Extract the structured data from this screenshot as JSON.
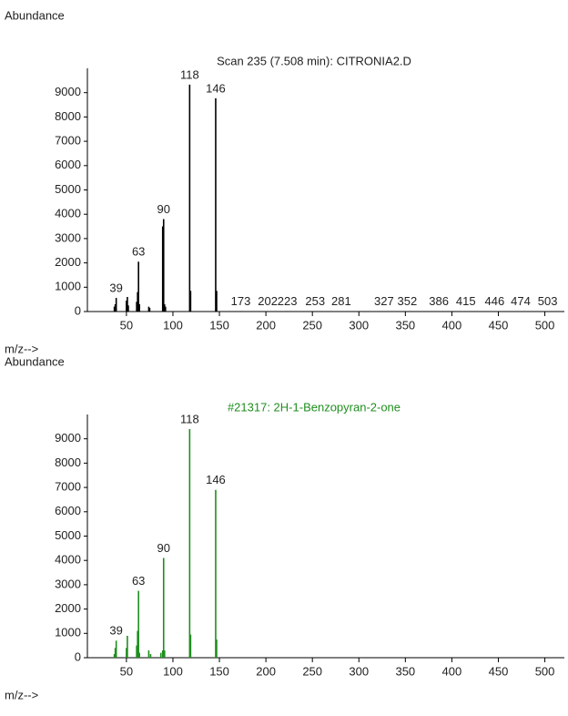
{
  "chart_data": [
    {
      "type": "bar",
      "title": "Scan 235 (7.508 min): CITRONIA2.D",
      "y_label": "Abundance",
      "x_label": "m/z-->",
      "color": "#000000",
      "x": [
        37,
        38,
        39,
        50,
        51,
        52,
        61,
        62,
        63,
        64,
        74,
        75,
        89,
        90,
        91,
        92,
        118,
        119,
        146,
        147,
        173,
        202,
        223,
        253,
        281,
        327,
        352,
        386,
        415,
        446,
        474,
        503
      ],
      "values": [
        200,
        300,
        560,
        450,
        600,
        250,
        400,
        800,
        2050,
        300,
        200,
        150,
        3500,
        3800,
        300,
        200,
        9330,
        850,
        8770,
        850,
        20,
        20,
        20,
        15,
        15,
        15,
        15,
        10,
        10,
        10,
        10,
        10
      ],
      "peak_labels": [
        39,
        63,
        90,
        118,
        146,
        173,
        202,
        223,
        253,
        281,
        327,
        352,
        386,
        415,
        446,
        474,
        503
      ],
      "xlim": [
        8,
        521
      ],
      "ylim": [
        0,
        10000
      ],
      "xticks": [
        50,
        100,
        150,
        200,
        250,
        300,
        350,
        400,
        450,
        500
      ],
      "yticks": [
        0,
        1000,
        2000,
        3000,
        4000,
        5000,
        6000,
        7000,
        8000,
        9000
      ]
    },
    {
      "type": "bar",
      "title": "#21317: 2H-1-Benzopyran-2-one",
      "y_label": "Abundance",
      "x_label": "m/z-->",
      "color": "#1f8f1f",
      "x": [
        37,
        38,
        39,
        50,
        51,
        61,
        62,
        63,
        64,
        74,
        76,
        87,
        89,
        90,
        91,
        118,
        119,
        146,
        147
      ],
      "values": [
        150,
        400,
        700,
        400,
        900,
        500,
        1100,
        2750,
        200,
        300,
        150,
        200,
        300,
        4100,
        300,
        9400,
        950,
        6900,
        750
      ],
      "peak_labels": [
        39,
        63,
        90,
        118,
        146
      ],
      "xlim": [
        8,
        521
      ],
      "ylim": [
        0,
        10000
      ],
      "xticks": [
        50,
        100,
        150,
        200,
        250,
        300,
        350,
        400,
        450,
        500
      ],
      "yticks": [
        0,
        1000,
        2000,
        3000,
        4000,
        5000,
        6000,
        7000,
        8000,
        9000
      ]
    }
  ]
}
